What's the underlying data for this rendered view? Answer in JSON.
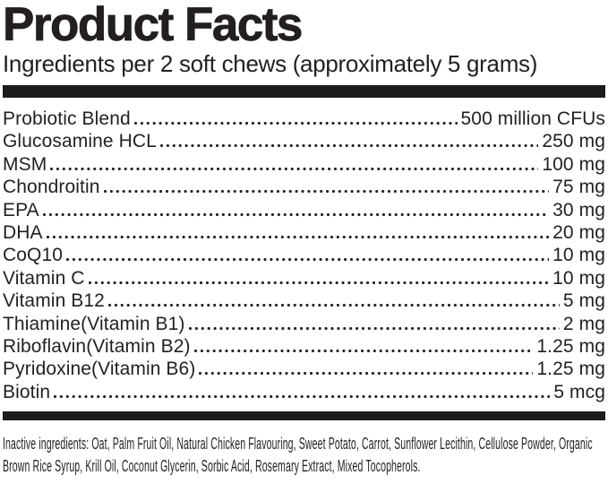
{
  "panel": {
    "title": "Product Facts",
    "subtitle": "Ingredients per 2 soft chews (approximately 5 grams)",
    "ingredients": [
      {
        "name": "Probiotic Blend",
        "amount": "500 million CFUs"
      },
      {
        "name": "Glucosamine HCL",
        "amount": "250 mg"
      },
      {
        "name": "MSM",
        "amount": "100 mg"
      },
      {
        "name": "Chondroitin",
        "amount": "75 mg"
      },
      {
        "name": "EPA",
        "amount": "30 mg"
      },
      {
        "name": "DHA",
        "amount": "20 mg"
      },
      {
        "name": "CoQ10",
        "amount": "10 mg"
      },
      {
        "name": "Vitamin C",
        "amount": "10 mg"
      },
      {
        "name": "Vitamin B12",
        "amount": "5 mg"
      },
      {
        "name": "Thiamine(Vitamin B1)",
        "amount": "2 mg"
      },
      {
        "name": "Riboflavin(Vitamin B2)",
        "amount": "1.25 mg"
      },
      {
        "name": "Pyridoxine(Vitamin B6)",
        "amount": "1.25 mg"
      },
      {
        "name": "Biotin",
        "amount": "5 mcg"
      }
    ],
    "inactive_ingredients": "Inactive ingredients: Oat, Palm Fruit Oil, Natural Chicken Flavouring, Sweet Potato, Carrot, Sunflower Lecithin, Cellulose Powder, Organic Brown Rice Syrup, Krill Oil, Coconut Glycerin, Sorbic Acid, Rosemary Extract, Mixed Tocopherols.",
    "colors": {
      "text": "#231f20",
      "divider_bar": "#1d1a1b",
      "background": "#ffffff"
    }
  }
}
